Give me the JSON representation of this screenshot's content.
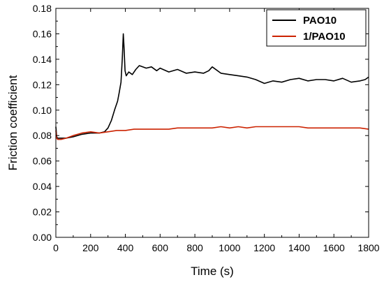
{
  "chart_data": {
    "type": "line",
    "xlabel": "Time (s)",
    "ylabel": "Friction coefficient",
    "xlim": [
      0,
      1800
    ],
    "ylim": [
      0,
      0.18
    ],
    "x_ticks": [
      "0",
      "200",
      "400",
      "600",
      "800",
      "1000",
      "1200",
      "1400",
      "1600",
      "1800"
    ],
    "y_ticks": [
      "0.00",
      "0.02",
      "0.04",
      "0.06",
      "0.08",
      "0.10",
      "0.12",
      "0.14",
      "0.16",
      "0.18"
    ],
    "grid": false,
    "legend_position": "top-right",
    "series": [
      {
        "name": "PAO10",
        "color": "#000000",
        "x": [
          0,
          5,
          10,
          30,
          60,
          100,
          150,
          200,
          250,
          280,
          300,
          320,
          340,
          355,
          365,
          375,
          382,
          388,
          392,
          398,
          405,
          420,
          440,
          460,
          480,
          500,
          520,
          550,
          580,
          600,
          650,
          700,
          750,
          800,
          850,
          880,
          900,
          950,
          1000,
          1050,
          1100,
          1150,
          1200,
          1250,
          1300,
          1350,
          1400,
          1450,
          1500,
          1550,
          1600,
          1650,
          1700,
          1750,
          1780,
          1800
        ],
        "y": [
          0.087,
          0.079,
          0.078,
          0.078,
          0.078,
          0.079,
          0.081,
          0.082,
          0.082,
          0.083,
          0.086,
          0.092,
          0.101,
          0.107,
          0.114,
          0.122,
          0.14,
          0.16,
          0.15,
          0.131,
          0.127,
          0.13,
          0.128,
          0.132,
          0.135,
          0.134,
          0.133,
          0.134,
          0.131,
          0.133,
          0.13,
          0.132,
          0.129,
          0.13,
          0.129,
          0.131,
          0.134,
          0.129,
          0.128,
          0.127,
          0.126,
          0.124,
          0.121,
          0.123,
          0.122,
          0.124,
          0.125,
          0.123,
          0.124,
          0.124,
          0.123,
          0.125,
          0.122,
          0.123,
          0.124,
          0.126
        ]
      },
      {
        "name": "1/PAO10",
        "color": "#cc2200",
        "x": [
          0,
          5,
          10,
          30,
          60,
          100,
          150,
          200,
          250,
          300,
          350,
          400,
          450,
          500,
          550,
          600,
          650,
          700,
          750,
          800,
          850,
          900,
          950,
          1000,
          1050,
          1100,
          1150,
          1200,
          1250,
          1300,
          1350,
          1400,
          1450,
          1500,
          1550,
          1600,
          1650,
          1700,
          1750,
          1800
        ],
        "y": [
          0.084,
          0.078,
          0.077,
          0.077,
          0.078,
          0.08,
          0.082,
          0.083,
          0.082,
          0.083,
          0.084,
          0.084,
          0.085,
          0.085,
          0.085,
          0.085,
          0.085,
          0.086,
          0.086,
          0.086,
          0.086,
          0.086,
          0.087,
          0.086,
          0.087,
          0.086,
          0.087,
          0.087,
          0.087,
          0.087,
          0.087,
          0.087,
          0.086,
          0.086,
          0.086,
          0.086,
          0.086,
          0.086,
          0.086,
          0.085
        ]
      }
    ]
  }
}
